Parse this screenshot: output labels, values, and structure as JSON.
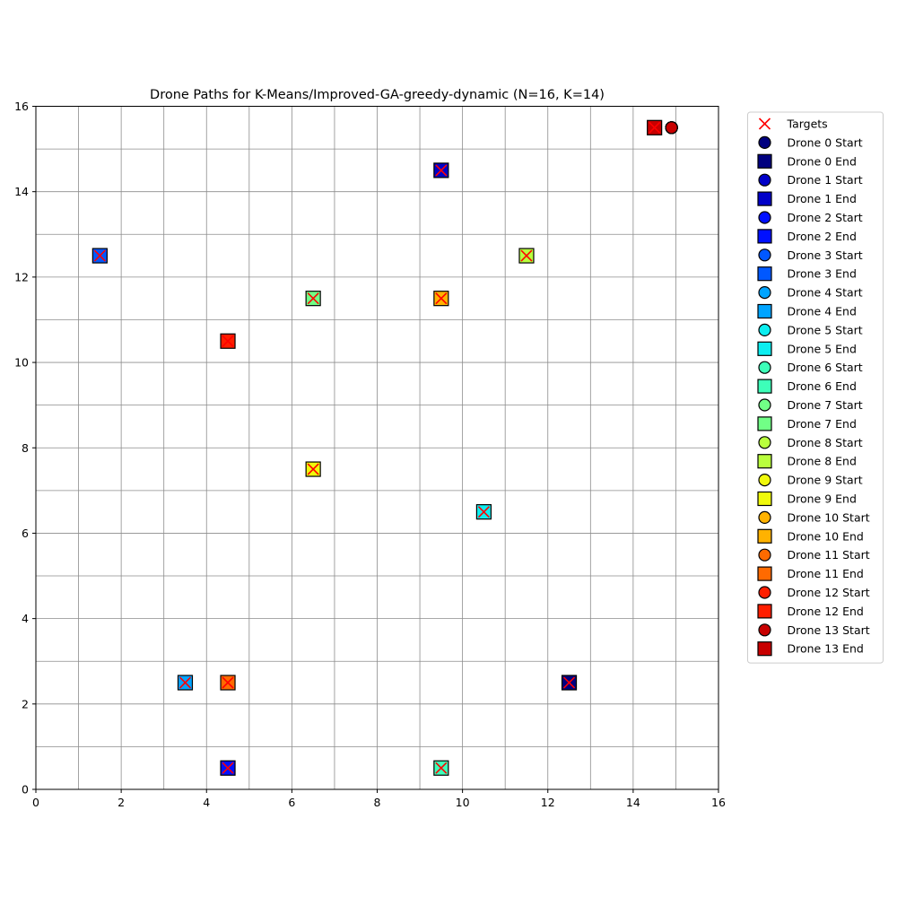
{
  "chart_data": {
    "type": "scatter",
    "title": "Drone Paths for K-Means/Improved-GA-greedy-dynamic (N=16, K=14)",
    "xlabel": "",
    "ylabel": "",
    "xlim": [
      0,
      16
    ],
    "ylim": [
      0,
      16
    ],
    "x_ticks": [
      0,
      2,
      4,
      6,
      8,
      10,
      12,
      14,
      16
    ],
    "y_ticks": [
      0,
      2,
      4,
      6,
      8,
      10,
      12,
      14,
      16
    ],
    "grid": true,
    "grid_step": 1,
    "legend_position": "outside-right",
    "targets": {
      "name": "Targets",
      "color": "#ff0000",
      "points": [
        [
          14.5,
          15.5
        ],
        [
          9.5,
          14.5
        ],
        [
          1.5,
          12.5
        ],
        [
          11.5,
          12.5
        ],
        [
          6.5,
          11.5
        ],
        [
          9.5,
          11.5
        ],
        [
          4.5,
          10.5
        ],
        [
          6.5,
          7.5
        ],
        [
          10.5,
          6.5
        ],
        [
          3.5,
          2.5
        ],
        [
          4.5,
          2.5
        ],
        [
          12.5,
          2.5
        ],
        [
          4.5,
          0.5
        ],
        [
          9.5,
          0.5
        ]
      ]
    },
    "drones": [
      {
        "start_label": "Drone 0 Start",
        "end_label": "Drone 0 End",
        "color": "#00007f",
        "start": [
          14.9,
          15.5
        ],
        "end": [
          12.5,
          2.5
        ]
      },
      {
        "start_label": "Drone 1 Start",
        "end_label": "Drone 1 End",
        "color": "#0000c8",
        "start": [
          14.9,
          15.5
        ],
        "end": [
          9.5,
          14.5
        ]
      },
      {
        "start_label": "Drone 2 Start",
        "end_label": "Drone 2 End",
        "color": "#0010ff",
        "start": [
          14.9,
          15.5
        ],
        "end": [
          4.5,
          0.5
        ]
      },
      {
        "start_label": "Drone 3 Start",
        "end_label": "Drone 3 End",
        "color": "#0058ff",
        "start": [
          14.9,
          15.5
        ],
        "end": [
          1.5,
          12.5
        ]
      },
      {
        "start_label": "Drone 4 Start",
        "end_label": "Drone 4 End",
        "color": "#00a4ff",
        "start": [
          14.9,
          15.5
        ],
        "end": [
          3.5,
          2.5
        ]
      },
      {
        "start_label": "Drone 5 Start",
        "end_label": "Drone 5 End",
        "color": "#0ceef0",
        "start": [
          14.9,
          15.5
        ],
        "end": [
          10.5,
          6.5
        ]
      },
      {
        "start_label": "Drone 6 Start",
        "end_label": "Drone 6 End",
        "color": "#3dffb9",
        "start": [
          14.9,
          15.5
        ],
        "end": [
          9.5,
          0.5
        ]
      },
      {
        "start_label": "Drone 7 Start",
        "end_label": "Drone 7 End",
        "color": "#71ff86",
        "start": [
          14.9,
          15.5
        ],
        "end": [
          6.5,
          11.5
        ]
      },
      {
        "start_label": "Drone 8 Start",
        "end_label": "Drone 8 End",
        "color": "#b9ff3d",
        "start": [
          14.9,
          15.5
        ],
        "end": [
          11.5,
          12.5
        ]
      },
      {
        "start_label": "Drone 9 Start",
        "end_label": "Drone 9 End",
        "color": "#f0f90c",
        "start": [
          14.9,
          15.5
        ],
        "end": [
          6.5,
          7.5
        ]
      },
      {
        "start_label": "Drone 10 Start",
        "end_label": "Drone 10 End",
        "color": "#ffb200",
        "start": [
          14.9,
          15.5
        ],
        "end": [
          9.5,
          11.5
        ]
      },
      {
        "start_label": "Drone 11 Start",
        "end_label": "Drone 11 End",
        "color": "#ff6a00",
        "start": [
          14.9,
          15.5
        ],
        "end": [
          4.5,
          2.5
        ]
      },
      {
        "start_label": "Drone 12 Start",
        "end_label": "Drone 12 End",
        "color": "#ff1e00",
        "start": [
          14.9,
          15.5
        ],
        "end": [
          4.5,
          10.5
        ]
      },
      {
        "start_label": "Drone 13 Start",
        "end_label": "Drone 13 End",
        "color": "#c80000",
        "start": [
          14.9,
          15.5
        ],
        "end": [
          14.5,
          15.5
        ]
      }
    ]
  }
}
